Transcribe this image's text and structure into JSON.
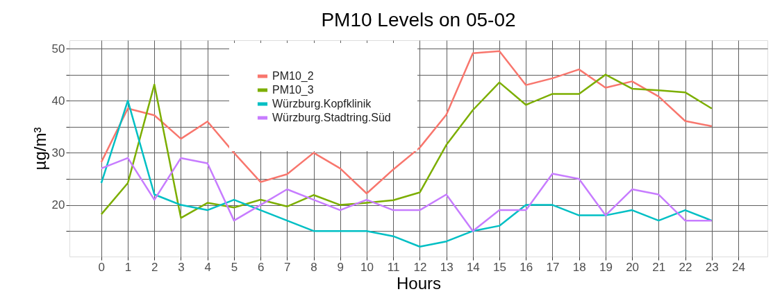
{
  "chart_data": {
    "type": "line",
    "title": "PM10 Levels on 05-02",
    "xlabel": "Hours",
    "ylabel": "µg/m³",
    "x": [
      0,
      1,
      2,
      3,
      4,
      5,
      6,
      7,
      8,
      9,
      10,
      11,
      12,
      13,
      14,
      15,
      16,
      17,
      18,
      19,
      20,
      21,
      22,
      23
    ],
    "series": [
      {
        "name": "PM10_2",
        "color": "#f8766d",
        "values": [
          28.2,
          38.5,
          37.2,
          32.7,
          36,
          30,
          24.4,
          25.9,
          30,
          27,
          22.2,
          26.8,
          31,
          37.3,
          49.1,
          49.5,
          43,
          44.3,
          46,
          42.5,
          43.7,
          40.8,
          36.1,
          35.1
        ]
      },
      {
        "name": "PM10_3",
        "color": "#7cae00",
        "values": [
          18.2,
          24.2,
          43.1,
          17.5,
          20.4,
          19.5,
          21,
          19.7,
          21.9,
          20,
          20.4,
          20.9,
          22.4,
          31.5,
          38.2,
          43.5,
          39.2,
          41.3,
          41.3,
          45,
          42.3,
          42,
          41.6,
          38.5
        ]
      },
      {
        "name": "Würzburg.Kopfklinik",
        "color": "#00bfc4",
        "values": [
          24.2,
          40,
          22,
          20,
          19,
          21,
          19,
          17,
          15,
          15,
          15,
          14,
          12,
          13,
          15,
          16,
          20,
          20,
          18,
          18,
          19,
          17,
          19,
          17
        ]
      },
      {
        "name": "Würzburg.Stadtring.Süd",
        "color": "#c77cff",
        "values": [
          27,
          29,
          21,
          29,
          28,
          17,
          20,
          23,
          21,
          19,
          21,
          19,
          19,
          22,
          15,
          19,
          19,
          26,
          25,
          18,
          23,
          22,
          17,
          17
        ]
      }
    ],
    "xlim": [
      -1.2,
      25.1
    ],
    "xticks": [
      0,
      1,
      2,
      3,
      4,
      5,
      6,
      7,
      8,
      9,
      10,
      11,
      12,
      13,
      14,
      15,
      16,
      17,
      18,
      19,
      20,
      21,
      22,
      23,
      24
    ],
    "ylim": [
      10.1,
      51.6
    ],
    "yticks": [
      {
        "value": 15,
        "label": null
      },
      20,
      {
        "value": 25,
        "label": null
      },
      30,
      {
        "value": 35,
        "label": null
      },
      40,
      {
        "value": 45,
        "label": null
      },
      50
    ],
    "grid": true,
    "legend": "top",
    "marker": "none",
    "line_style": "solid"
  }
}
